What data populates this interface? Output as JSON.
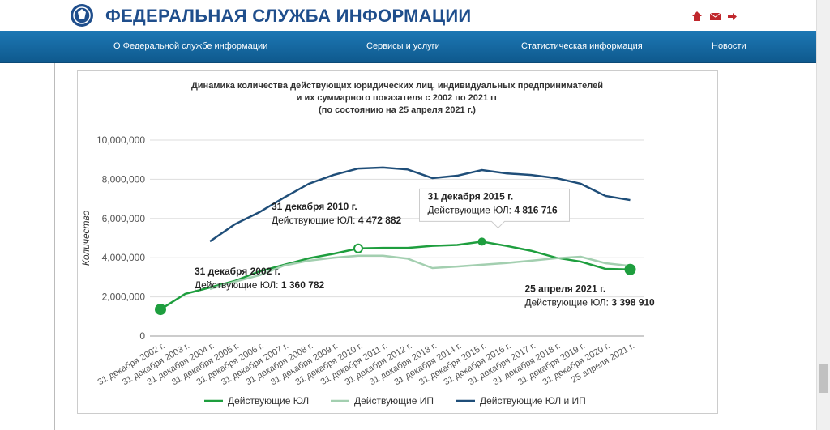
{
  "header": {
    "title": "ФЕДЕРАЛЬНАЯ СЛУЖБА ИНФОРМАЦИИ"
  },
  "nav": {
    "items": [
      "О Федеральной службе информации",
      "Сервисы и услуги",
      "Статистическая информация",
      "Новости"
    ]
  },
  "chart_data": {
    "type": "line",
    "title": [
      "Динамика количества действующих юридических лиц, индивидуальных предпринимателей",
      "и их суммарного показателя с 2002 по 2021 гг",
      "(по состоянию на 25 апреля 2021 г.)"
    ],
    "y_label": "Количество",
    "categories": [
      "31 декабря 2002 г.",
      "31 декабря 2003 г.",
      "31 декабря 2004 г.",
      "31 декабря 2005 г.",
      "31 декабря 2006 г.",
      "31 декабря 2007 г.",
      "31 декабря 2008 г.",
      "31 декабря 2009 г.",
      "31 декабря 2010 г.",
      "31 декабря 2011 г.",
      "31 декабря 2012 г.",
      "31 декабря 2013 г.",
      "31 декабря 2014 г.",
      "31 декабря 2015 г.",
      "31 декабря 2016 г.",
      "31 декабря 2017 г.",
      "31 декабря 2018 г.",
      "31 декабря 2019 г.",
      "31 декабря 2020 г.",
      "25 апреля 2021 г."
    ],
    "series": [
      {
        "name": "Действующие ЮЛ",
        "color": "#1e9e3e",
        "values": [
          1360782,
          2150000,
          2480000,
          2810000,
          3300000,
          3640000,
          3970000,
          4200000,
          4472882,
          4500000,
          4500000,
          4600000,
          4650000,
          4816716,
          4600000,
          4350000,
          4000000,
          3800000,
          3430000,
          3398910
        ],
        "value_labels": [
          "1 360 782",
          null,
          null,
          null,
          null,
          null,
          null,
          null,
          "4 472 882",
          null,
          null,
          null,
          null,
          "4 816 716",
          null,
          null,
          null,
          null,
          null,
          "3 398 910"
        ]
      },
      {
        "name": "Действующие ИП",
        "color": "#a3cfb0",
        "values": [
          null,
          null,
          2400000,
          2770000,
          3100000,
          3600000,
          3850000,
          4000000,
          4100000,
          4100000,
          3950000,
          3470000,
          3550000,
          3640000,
          3730000,
          3850000,
          3970000,
          4050000,
          3720000,
          3580000
        ]
      },
      {
        "name": "Действующие ЮЛ и ИП",
        "color": "#1f4e79",
        "values": [
          null,
          null,
          4830000,
          5700000,
          6320000,
          7070000,
          7770000,
          8220000,
          8550000,
          8600000,
          8500000,
          8060000,
          8180000,
          8470000,
          8300000,
          8220000,
          8060000,
          7770000,
          7150000,
          6940000
        ]
      }
    ],
    "annotations": [
      {
        "title": "31 декабря 2002 г.",
        "label": "Действующие ЮЛ:"
      },
      {
        "title": "31 декабря 2010 г.",
        "label": "Действующие ЮЛ:"
      },
      {
        "title": "31 декабря 2015 г.",
        "label": "Действующие ЮЛ:"
      },
      {
        "title": "25 апреля 2021 г.",
        "label": "Действующие ЮЛ:"
      }
    ],
    "ylim": [
      0,
      10000000
    ],
    "yticks": [
      0,
      {
        "value": 2000000,
        "label": "2,000,000"
      },
      {
        "value": 4000000,
        "label": "4,000,000"
      },
      {
        "value": 6000000,
        "label": "6,000,000"
      },
      {
        "value": 8000000,
        "label": "8,000,000"
      },
      {
        "value": 10000000,
        "label": "10,000,000"
      }
    ],
    "grid": true
  }
}
